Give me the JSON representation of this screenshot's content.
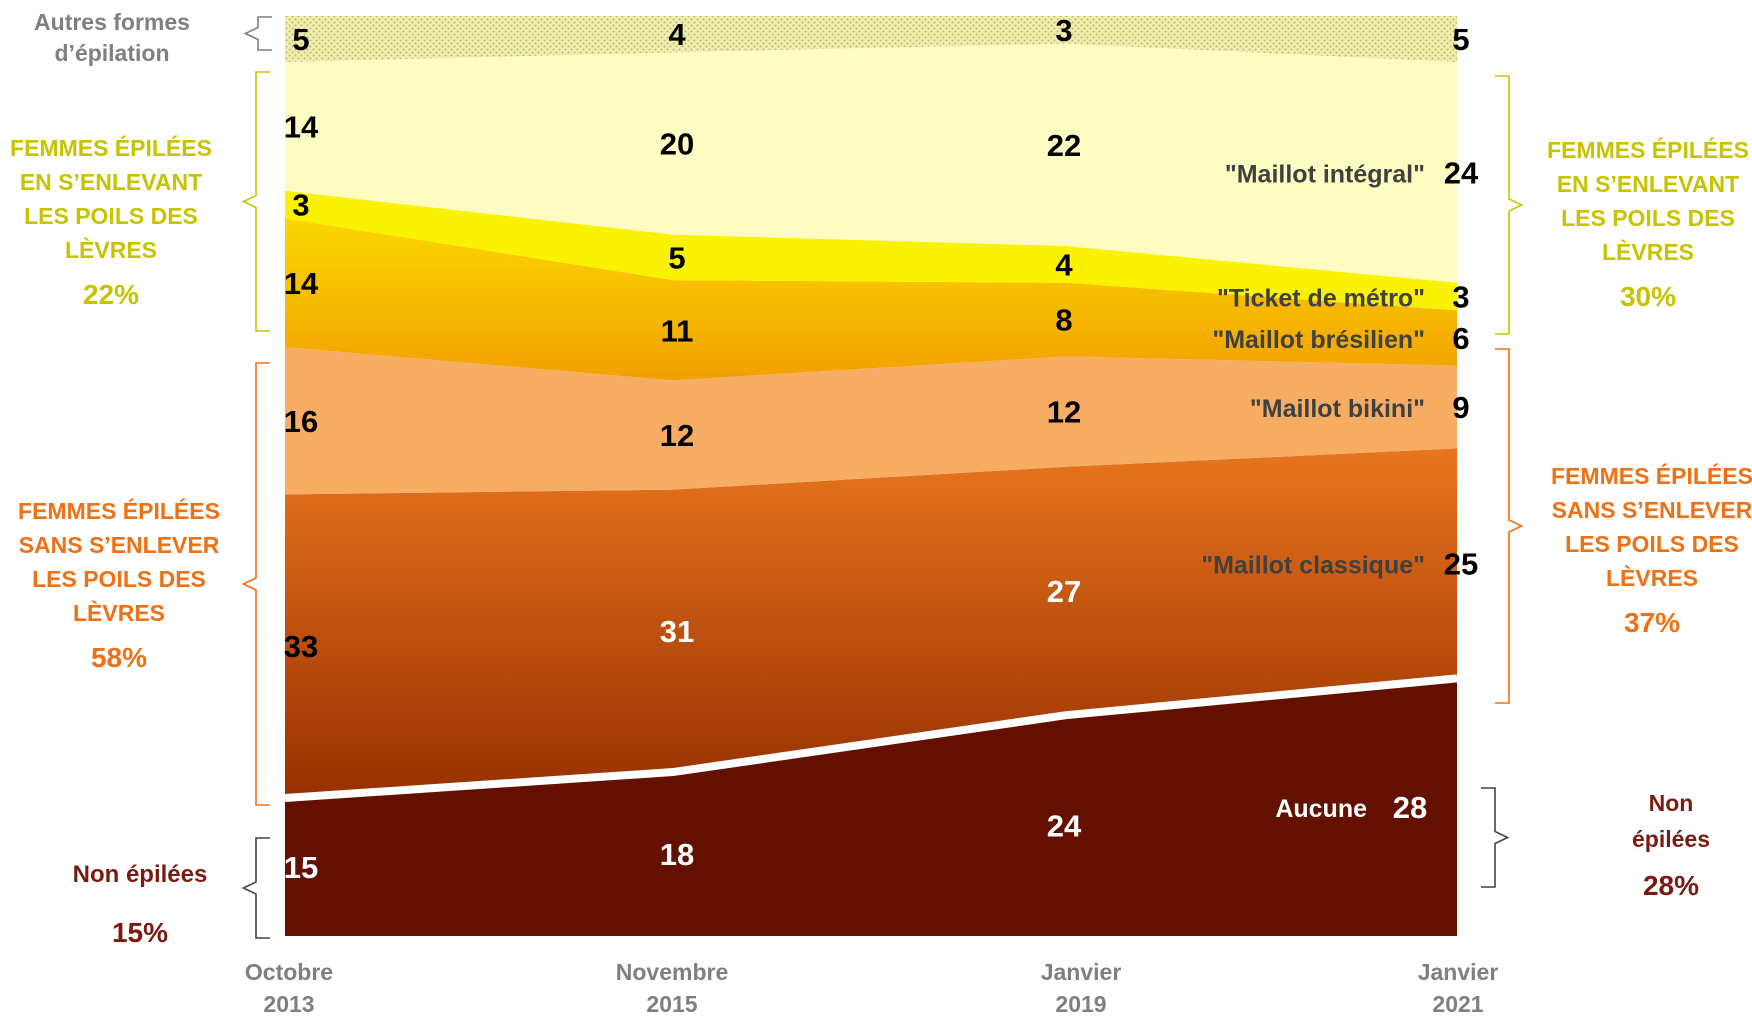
{
  "chart_data": {
    "type": "area",
    "stacked": true,
    "categories": [
      "Octobre 2013",
      "Novembre 2015",
      "Janvier 2019",
      "Janvier 2021"
    ],
    "x_tick_labels": [
      [
        "Octobre",
        "2013"
      ],
      [
        "Novembre",
        "2015"
      ],
      [
        "Janvier",
        "2019"
      ],
      [
        "Janvier",
        "2021"
      ]
    ],
    "unit": "%",
    "series": [
      {
        "name": "Aucune",
        "values": [
          15,
          18,
          24,
          28
        ],
        "color": "#631000",
        "label_color": "#ffffff"
      },
      {
        "name": "\"Maillot classique\"",
        "values": [
          33,
          31,
          27,
          25
        ],
        "color_top": "#e8751e",
        "color_bottom": "#973000",
        "label_color": "#ffffff",
        "first_label_color": "#000000",
        "last_label_color": "#000000"
      },
      {
        "name": "\"Maillot bikini\"",
        "values": [
          16,
          12,
          12,
          9
        ],
        "color": "#f8ad64",
        "label_color": "#000000"
      },
      {
        "name": "\"Maillot brésilien\"",
        "values": [
          14,
          11,
          8,
          6
        ],
        "color_top": "#fbd000",
        "color_bottom": "#f3a400",
        "label_color": "#000000"
      },
      {
        "name": "\"Ticket de métro\"",
        "values": [
          3,
          5,
          4,
          3
        ],
        "color": "#faf200",
        "label_color": "#000000"
      },
      {
        "name": "\"Maillot intégral\"",
        "values": [
          14,
          20,
          22,
          24
        ],
        "color": "#fdfcc2",
        "label_color": "#000000"
      },
      {
        "name": "Autres formes d'épilation",
        "values": [
          5,
          4,
          3,
          5
        ],
        "color": "#eae9a0",
        "label_color": "#000000",
        "pattern": "dots"
      }
    ],
    "ylim": [
      0,
      100
    ],
    "grid": false,
    "legend": "inline"
  },
  "annotations": {
    "autres": {
      "lines": [
        "Autres formes",
        "d’épilation"
      ],
      "color": "#7f7f7f"
    },
    "left_groups": [
      {
        "lines": [
          "FEMMES ÉPILÉES",
          "EN S’ENLEVANT",
          "LES POILS DES",
          "LÈVRES"
        ],
        "pct": "22%",
        "color": "#c8c300"
      },
      {
        "lines": [
          "FEMMES ÉPILÉES",
          "SANS S’ENLEVER",
          "LES POILS DES",
          "LÈVRES"
        ],
        "pct": "58%",
        "color": "#f07014"
      },
      {
        "lines": [
          "Non épilées"
        ],
        "pct": "15%",
        "color": "#7a1a12"
      }
    ],
    "right_groups": [
      {
        "lines": [
          "FEMMES ÉPILÉES",
          "EN S’ENLEVANT",
          "LES POILS DES",
          "LÈVRES"
        ],
        "pct": "30%",
        "color": "#c8c300"
      },
      {
        "lines": [
          "FEMMES ÉPILÉES",
          "SANS S’ENLEVER",
          "LES POILS DES",
          "LÈVRES"
        ],
        "pct": "37%",
        "color": "#f07014"
      },
      {
        "lines": [
          "Non",
          "épilées"
        ],
        "pct": "28%",
        "color": "#7a1a12"
      }
    ]
  }
}
